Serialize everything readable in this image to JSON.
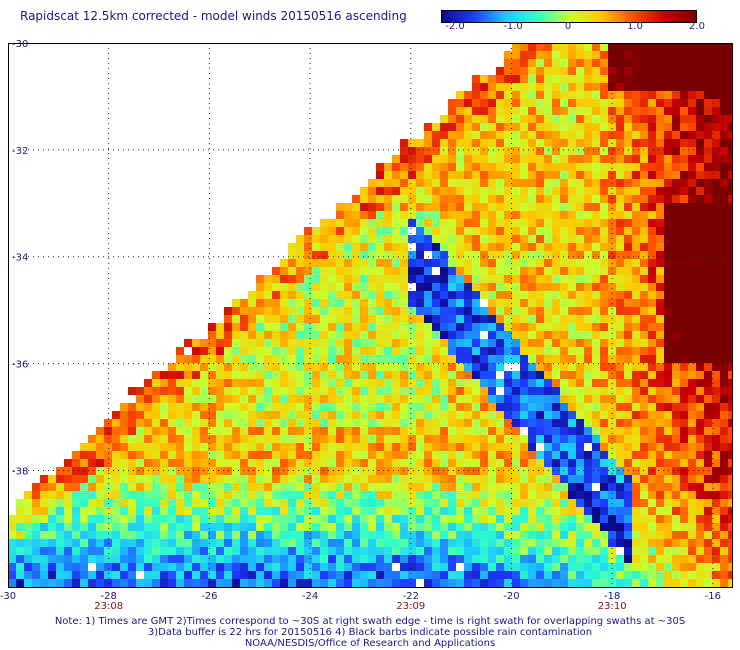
{
  "title": "Rapidscat 12.5km corrected - model winds 20150516 ascending",
  "colorbar": {
    "ticks": [
      "-2.0",
      "-1.0",
      "0",
      "1.0",
      "2.0"
    ],
    "min": -2.0,
    "max": 2.0,
    "colors": [
      "#0a0a8c",
      "#1e3cff",
      "#1ec8ff",
      "#32ffc8",
      "#c8ff32",
      "#ffc800",
      "#ff5000",
      "#c80000",
      "#780000"
    ]
  },
  "axes": {
    "lon_labels": [
      "-30",
      "-28",
      "-26",
      "-24",
      "-22",
      "-20",
      "-18",
      "-16"
    ],
    "lon_values": [
      -30,
      -28,
      -26,
      -24,
      -22,
      -20,
      -18,
      -16
    ],
    "lat_labels": [
      "-30",
      "-32",
      "-34",
      "-36",
      "-38"
    ],
    "lat_values": [
      -30,
      -32,
      -34,
      -36,
      -38
    ],
    "lon_range": [
      -30,
      -15.6
    ],
    "lat_range": [
      -30,
      -40.2
    ],
    "grid": "dotted"
  },
  "times": [
    {
      "lon": -28,
      "label": "23:08"
    },
    {
      "lon": -22,
      "label": "23:09"
    },
    {
      "lon": -18,
      "label": "23:10"
    }
  ],
  "notes": [
    "Note: 1) Times are GMT 2)Times correspond to ~30S at right swath edge - time is right swath for overlapping swaths at ~30S",
    "3)Data buffer is 22 hrs for 20150516 4) Black barbs indicate possible rain contamination",
    "NOAA/NESDIS/Office of Research and Applications"
  ]
}
